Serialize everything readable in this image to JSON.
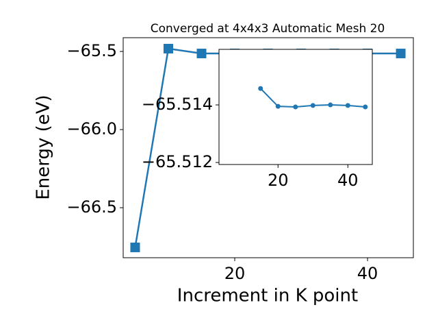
{
  "chart_data": [
    {
      "type": "line",
      "title": "Converged at 4x4x3 Automatic Mesh 20",
      "x_label": "Increment in K point",
      "y_label": "Energy (eV)",
      "x": [
        5,
        10,
        15,
        20,
        25,
        30,
        35,
        40,
        45
      ],
      "series": [
        {
          "color": "#1f77b4",
          "marker": "square",
          "values": [
            -66.754,
            -65.482,
            -65.513,
            -65.513,
            -65.513,
            -65.513,
            -65.513,
            -65.513,
            -65.513
          ]
        }
      ],
      "xlim": [
        3.2,
        46.9
      ],
      "xticks": [
        20,
        40
      ],
      "ylim": [
        -66.82,
        -65.412
      ],
      "yticks": [
        {
          "value": -66.5,
          "label": "−66.5"
        },
        {
          "value": -66.0,
          "label": "−66.0"
        },
        {
          "value": -65.5,
          "label": "−65.5"
        }
      ]
    },
    {
      "type": "line",
      "x": [
        15,
        20,
        25,
        30,
        35,
        40,
        45
      ],
      "series": [
        {
          "color": "#1f77b4",
          "marker": "circle",
          "values": [
            -65.51457,
            -65.51395,
            -65.51393,
            -65.51398,
            -65.514,
            -65.51398,
            -65.51393
          ]
        }
      ],
      "xlim": [
        3.1,
        47
      ],
      "xticks": [
        20,
        40
      ],
      "ylim": [
        -65.51193,
        -65.51593
      ],
      "yticks": [
        {
          "value": -65.512,
          "label": "−65.512"
        },
        {
          "value": -65.514,
          "label": "−65.514"
        }
      ]
    }
  ]
}
